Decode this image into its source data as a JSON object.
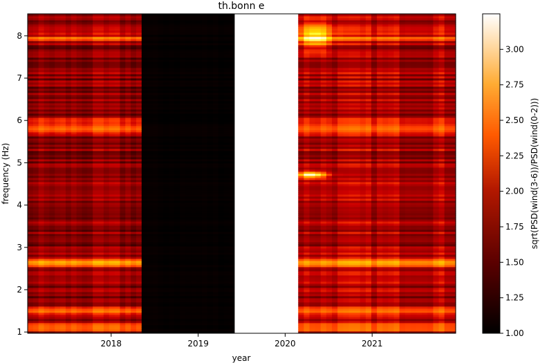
{
  "chart_data": {
    "type": "heatmap",
    "title": "th.bonn e",
    "xlabel": "year",
    "ylabel": "frequency (Hz)",
    "colorbar_label": "sqrt(PSD(wind(3-6))/PSD(wind(0-2)))",
    "colormap": "gist_heat",
    "xlim": [
      2017.04,
      2021.96
    ],
    "ylim": [
      0.97,
      8.52
    ],
    "clim": [
      1.0,
      3.25
    ],
    "x_ticks": [
      {
        "value": 2018,
        "label": "2018"
      },
      {
        "value": 2019,
        "label": "2019"
      },
      {
        "value": 2020,
        "label": "2020"
      },
      {
        "value": 2021,
        "label": "2021"
      }
    ],
    "y_ticks": [
      {
        "value": 1,
        "label": "1"
      },
      {
        "value": 2,
        "label": "2"
      },
      {
        "value": 3,
        "label": "3"
      },
      {
        "value": 4,
        "label": "4"
      },
      {
        "value": 5,
        "label": "5"
      },
      {
        "value": 6,
        "label": "6"
      },
      {
        "value": 7,
        "label": "7"
      },
      {
        "value": 8,
        "label": "8"
      }
    ],
    "colorbar_ticks": [
      {
        "value": 1.0,
        "label": "1.00"
      },
      {
        "value": 1.25,
        "label": "1.25"
      },
      {
        "value": 1.5,
        "label": "1.50"
      },
      {
        "value": 1.75,
        "label": "1.75"
      },
      {
        "value": 2.0,
        "label": "2.00"
      },
      {
        "value": 2.25,
        "label": "2.25"
      },
      {
        "value": 2.5,
        "label": "2.50"
      },
      {
        "value": 2.75,
        "label": "2.75"
      },
      {
        "value": 3.0,
        "label": "3.00"
      }
    ],
    "segments": [
      {
        "x_start": 2017.04,
        "x_end": 2018.35,
        "base_level": 1.6
      },
      {
        "x_start": 2018.35,
        "x_end": 2019.42,
        "base_level": 1.02
      },
      {
        "x_start": 2019.42,
        "x_end": 2020.15,
        "base_level": null
      },
      {
        "x_start": 2020.15,
        "x_end": 2021.96,
        "base_level": 1.75
      }
    ],
    "frequency_bands": [
      {
        "frequency": 1.12,
        "level": 2.45
      },
      {
        "frequency": 1.5,
        "level": 2.25
      },
      {
        "frequency": 2.65,
        "level": 2.75
      },
      {
        "frequency": 5.8,
        "level": 2.1
      },
      {
        "frequency": 6.0,
        "level": 2.3
      },
      {
        "frequency": 7.95,
        "level": 2.2
      }
    ],
    "hotspots": [
      {
        "x": 2020.3,
        "frequency": 4.72,
        "level": 3.2
      },
      {
        "x": 2020.35,
        "frequency": 8.0,
        "level": 2.7
      }
    ]
  }
}
